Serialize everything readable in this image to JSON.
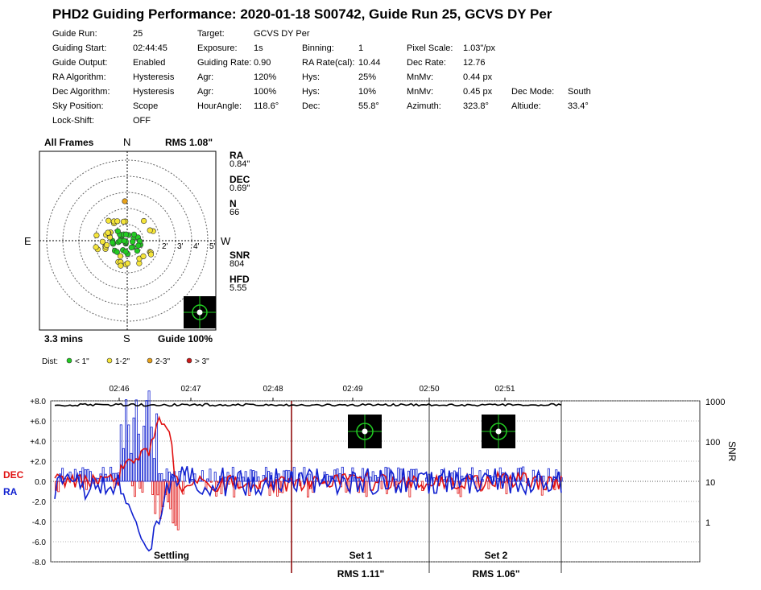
{
  "title": "PHD2 Guiding Performance: 2020-01-18 S00742, Guide Run 25, GCVS DY Per",
  "info_rows": [
    [
      [
        "Guide Run:",
        "25"
      ],
      [
        "Target:",
        "GCVS DY Per"
      ]
    ],
    [
      [
        "Guiding Start:",
        "02:44:45"
      ],
      [
        "Exposure:",
        "1s"
      ],
      [
        "Binning:",
        "1"
      ],
      [
        "Pixel Scale:",
        "1.03\"/px"
      ]
    ],
    [
      [
        "Guide Output:",
        "Enabled"
      ],
      [
        "Guiding Rate:",
        "0.90"
      ],
      [
        "RA Rate(cal):",
        "10.44"
      ],
      [
        "Dec Rate:",
        "12.76"
      ]
    ],
    [
      [
        "RA Algorithm:",
        "Hysteresis"
      ],
      [
        "Agr:",
        "120%"
      ],
      [
        "Hys:",
        "25%"
      ],
      [
        "MnMv:",
        "0.44 px"
      ]
    ],
    [
      [
        "Dec Algorithm:",
        "Hysteresis"
      ],
      [
        "Agr:",
        "100%"
      ],
      [
        "Hys:",
        "10%"
      ],
      [
        "MnMv:",
        "0.45 px"
      ],
      [
        "Dec Mode:",
        "South"
      ]
    ],
    [
      [
        "Sky Position:",
        "Scope"
      ],
      [
        "HourAngle:",
        "118.6°"
      ],
      [
        "Dec:",
        "55.8°"
      ],
      [
        "Azimuth:",
        "323.8°"
      ],
      [
        "Altiude:",
        "33.4°"
      ]
    ],
    [
      [
        "Lock-Shift:",
        "OFF"
      ]
    ]
  ],
  "scatter": {
    "header_left": "All Frames",
    "header_right": "RMS 1.08\"",
    "footer_left": "3.3 mins",
    "footer_right": "Guide 100%",
    "north": "N",
    "south": "S",
    "east": "E",
    "west": "W",
    "ring_labels": [
      "2'",
      "3'",
      "4'",
      "5'"
    ],
    "stats": [
      {
        "label": "RA",
        "value": "0.84\""
      },
      {
        "label": "DEC",
        "value": "0.69\""
      },
      {
        "label": "N",
        "value": "66"
      },
      {
        "label": "SNR",
        "value": "804"
      },
      {
        "label": "HFD",
        "value": "5.55"
      }
    ],
    "legend_title": "Dist:",
    "legend": [
      {
        "label": "< 1\"",
        "color": "#22cc22"
      },
      {
        "label": "1-2\"",
        "color": "#f5e53a"
      },
      {
        "label": "2-3\"",
        "color": "#e8a21a"
      },
      {
        "label": "> 3\"",
        "color": "#cc1a1a"
      }
    ]
  },
  "chart_data": {
    "type": "line",
    "x_ticks": [
      "02:46",
      "02:47",
      "02:48",
      "02:49",
      "02:50",
      "02:51"
    ],
    "y_ticks": [
      "+8.0",
      "+6.0",
      "+4.0",
      "+2.0",
      "0.0",
      "-2.0",
      "-4.0",
      "-6.0",
      "-8.0"
    ],
    "ylim": [
      -8,
      8
    ],
    "snr_ticks": [
      "1000",
      "100",
      "10",
      "1"
    ],
    "snr_label": "SNR",
    "series": [
      {
        "name": "DEC",
        "color": "#e01010"
      },
      {
        "name": "RA",
        "color": "#1020d0"
      }
    ],
    "sections": [
      {
        "name": "Settling",
        "rms": ""
      },
      {
        "name": "Set 1",
        "rms": "RMS 1.11\""
      },
      {
        "name": "Set 2",
        "rms": "RMS 1.06\""
      }
    ]
  }
}
